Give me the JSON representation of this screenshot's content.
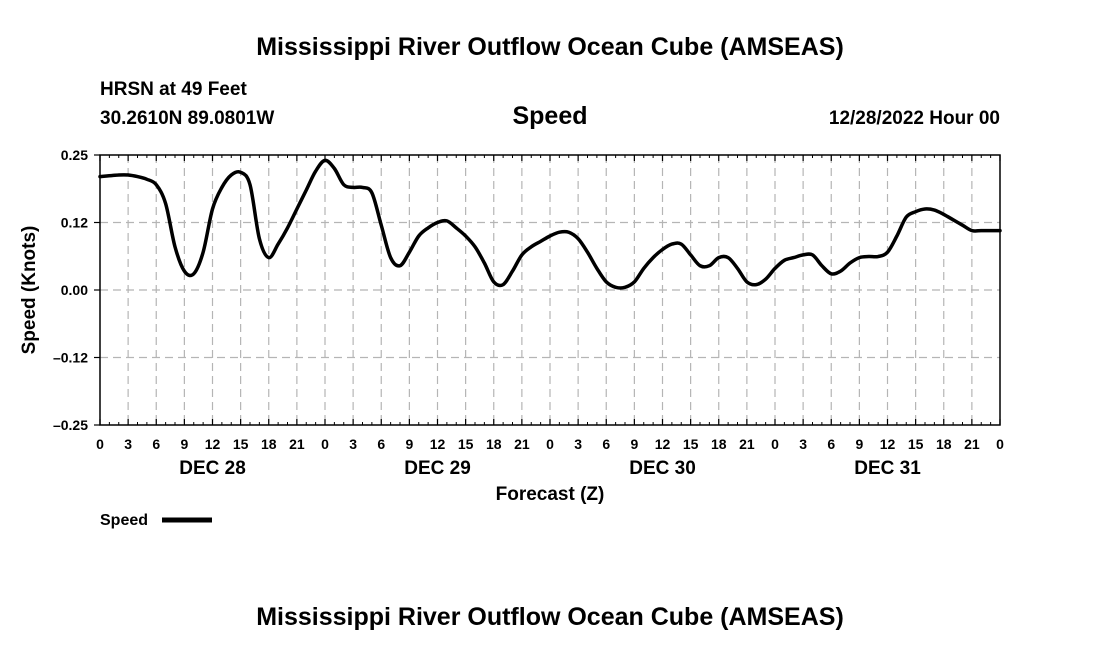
{
  "chart_data": {
    "type": "line",
    "title": "Mississippi River Outflow Ocean Cube (AMSEAS)",
    "station": "HRSN at 49 Feet",
    "location": "30.2610N  89.0801W",
    "variable": "Speed",
    "datetime": "12/28/2022 Hour 00",
    "ylabel": "Speed (Knots)",
    "xlabel": "Forecast (Z)",
    "ylim": [
      -0.25,
      0.25
    ],
    "yticks": [
      {
        "value": 0.25,
        "label": "0.25"
      },
      {
        "value": 0.125,
        "label": "0.12"
      },
      {
        "value": 0,
        "label": "0.00"
      },
      {
        "value": -0.125,
        "label": "–0.12"
      },
      {
        "value": -0.25,
        "label": "–0.25"
      }
    ],
    "xlim": [
      0,
      96
    ],
    "xticks": [
      "0",
      "3",
      "6",
      "9",
      "12",
      "15",
      "18",
      "21",
      "0",
      "3",
      "6",
      "9",
      "12",
      "15",
      "18",
      "21",
      "0",
      "3",
      "6",
      "9",
      "12",
      "15",
      "18",
      "21",
      "0",
      "3",
      "6",
      "9",
      "12",
      "15",
      "18",
      "21",
      "0"
    ],
    "day_labels": [
      {
        "hour": 12,
        "label": "DEC 28"
      },
      {
        "hour": 36,
        "label": "DEC 29"
      },
      {
        "hour": 60,
        "label": "DEC 30"
      },
      {
        "hour": 84,
        "label": "DEC 31"
      }
    ],
    "grid": true,
    "series": [
      {
        "name": "Speed",
        "color": "#000000",
        "x": [
          0,
          2,
          3,
          4,
          5,
          6,
          7,
          8,
          9,
          10,
          11,
          12,
          13,
          14,
          15,
          16,
          17,
          18,
          19,
          20,
          21,
          22,
          23,
          24,
          25,
          26,
          27,
          28,
          29,
          30,
          31,
          32,
          33,
          34,
          35,
          36,
          37,
          38,
          39,
          40,
          41,
          42,
          43,
          44,
          45,
          46,
          47,
          48,
          49,
          50,
          51,
          52,
          53,
          54,
          55,
          56,
          57,
          58,
          59,
          60,
          61,
          62,
          63,
          64,
          65,
          66,
          67,
          68,
          69,
          70,
          71,
          72,
          73,
          74,
          75,
          76,
          77,
          78,
          79,
          80,
          81,
          82,
          83,
          84,
          85,
          86,
          87,
          88,
          89,
          90,
          91,
          92,
          93,
          94,
          95,
          96
        ],
        "values": [
          0.21,
          0.213,
          0.213,
          0.21,
          0.205,
          0.195,
          0.16,
          0.08,
          0.035,
          0.03,
          0.07,
          0.15,
          0.19,
          0.213,
          0.218,
          0.195,
          0.095,
          0.06,
          0.085,
          0.115,
          0.15,
          0.185,
          0.22,
          0.24,
          0.225,
          0.195,
          0.19,
          0.19,
          0.18,
          0.12,
          0.06,
          0.045,
          0.07,
          0.1,
          0.115,
          0.125,
          0.128,
          0.115,
          0.1,
          0.08,
          0.05,
          0.015,
          0.01,
          0.035,
          0.065,
          0.08,
          0.09,
          0.1,
          0.107,
          0.107,
          0.095,
          0.07,
          0.04,
          0.015,
          0.005,
          0.005,
          0.015,
          0.04,
          0.06,
          0.075,
          0.085,
          0.085,
          0.065,
          0.045,
          0.045,
          0.06,
          0.06,
          0.04,
          0.015,
          0.01,
          0.02,
          0.04,
          0.055,
          0.06,
          0.065,
          0.065,
          0.045,
          0.03,
          0.035,
          0.05,
          0.06,
          0.062,
          0.062,
          0.07,
          0.1,
          0.135,
          0.145,
          0.15,
          0.148,
          0.14,
          0.13,
          0.12,
          0.11,
          0.11,
          0.11,
          0.11
        ]
      }
    ],
    "legend": {
      "label": "Speed",
      "placement": "bottom-left"
    },
    "footer_title": "Mississippi River Outflow Ocean Cube (AMSEAS)"
  }
}
